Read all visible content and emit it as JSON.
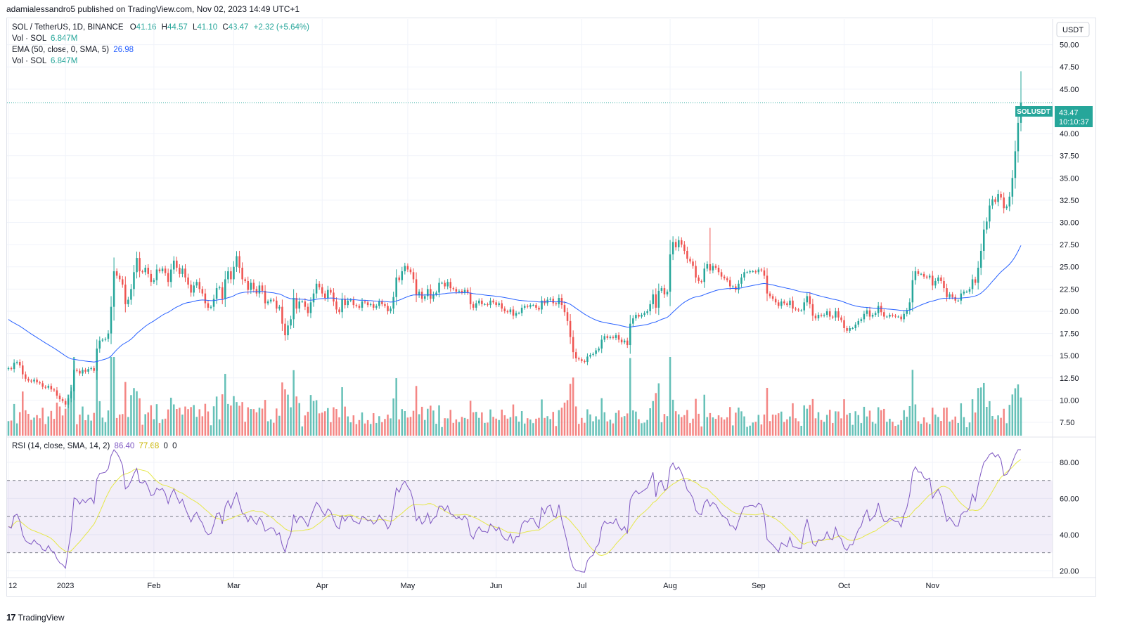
{
  "header": {
    "published": "adamialessandro5 published on TradingView.com, Nov 02, 2023 14:49 UTC+1"
  },
  "legend": {
    "symbol": "SOL / TetherUS, 1D, BINANCE",
    "open_label": "O",
    "open": "41.16",
    "high_label": "H",
    "high": "44.57",
    "low_label": "L",
    "low": "41.10",
    "close_label": "C",
    "close": "43.47",
    "change": "+2.32 (+5.64%)",
    "vol1_label": "Vol · SOL",
    "vol1": "6.847M",
    "ema_label": "EMA (50, close, 0, SMA, 5)",
    "ema": "26.98",
    "vol2_label": "Vol · SOL",
    "vol2": "6.847M",
    "rsi_label": "RSI (14, close, SMA, 14, 2)",
    "rsi": "86.40",
    "rsi_ma": "77.68",
    "rsi_x1": "0",
    "rsi_x2": "0"
  },
  "axis": {
    "currency": "USDT",
    "price_ticks": [
      "50.00",
      "47.50",
      "45.00",
      "40.00",
      "37.50",
      "35.00",
      "32.50",
      "30.00",
      "27.50",
      "25.00",
      "22.50",
      "20.00",
      "17.50",
      "15.00",
      "12.50",
      "10.00",
      "7.50"
    ],
    "rsi_ticks": [
      "80.00",
      "60.00",
      "40.00",
      "20.00"
    ],
    "time_ticks": [
      "12",
      "2023",
      "Feb",
      "Mar",
      "Apr",
      "May",
      "Jun",
      "Jul",
      "Aug",
      "Sep",
      "Oct",
      "Nov"
    ]
  },
  "price_label": {
    "symbol": "SOLUSDT",
    "price": "43.47",
    "countdown": "10:10:37"
  },
  "footer": {
    "brand": "TradingView",
    "logo": "17"
  },
  "colors": {
    "up": "#26a69a",
    "down": "#ef5350",
    "ema": "#2962ff",
    "rsi": "#7e57c2",
    "rsi_ma": "#e6e84a",
    "rsi_band": "#7e57c2"
  },
  "chart_data": {
    "type": "candlestick",
    "ylim": [
      6.0,
      52.5
    ],
    "rsi_ylim": [
      17,
      87
    ],
    "rsi_bands": [
      30,
      50,
      70
    ],
    "months": [
      {
        "label": "12",
        "index": 0
      },
      {
        "label": "2023",
        "index": 20
      },
      {
        "label": "Feb",
        "index": 51
      },
      {
        "label": "Mar",
        "index": 79
      },
      {
        "label": "Apr",
        "index": 110
      },
      {
        "label": "May",
        "index": 140
      },
      {
        "label": "Jun",
        "index": 171
      },
      {
        "label": "Jul",
        "index": 201
      },
      {
        "label": "Aug",
        "index": 232
      },
      {
        "label": "Sep",
        "index": 263
      },
      {
        "label": "Oct",
        "index": 293
      },
      {
        "label": "Nov",
        "index": 324
      }
    ],
    "closes": [
      13.6,
      13.5,
      14.2,
      14.3,
      13.9,
      12.9,
      12.4,
      12.2,
      12.1,
      12.3,
      12.0,
      11.9,
      11.5,
      11.4,
      11.6,
      11.2,
      11.1,
      10.5,
      10.1,
      9.9,
      9.5,
      10.2,
      11.0,
      13.4,
      13.3,
      13.0,
      13.4,
      13.2,
      13.5,
      13.6,
      13.3,
      15.8,
      16.7,
      16.8,
      16.9,
      17.5,
      20.5,
      24.5,
      24.0,
      23.6,
      23.0,
      20.8,
      21.3,
      22.5,
      24.4,
      26.0,
      24.5,
      24.4,
      24.9,
      24.2,
      23.3,
      23.5,
      24.7,
      24.5,
      24.8,
      24.3,
      23.3,
      24.7,
      25.7,
      24.9,
      24.2,
      24.8,
      23.8,
      23.0,
      22.1,
      22.9,
      23.3,
      22.5,
      22.0,
      20.9,
      20.4,
      20.5,
      21.4,
      22.6,
      22.7,
      21.4,
      23.6,
      24.5,
      23.6,
      25.0,
      26.2,
      24.9,
      23.6,
      23.4,
      22.4,
      23.2,
      22.5,
      22.0,
      22.9,
      22.3,
      20.9,
      21.1,
      21.3,
      21.2,
      20.3,
      20.5,
      18.6,
      17.3,
      18.4,
      19.1,
      21.5,
      20.3,
      21.1,
      21.1,
      20.5,
      19.8,
      21.0,
      22.0,
      23.1,
      22.7,
      22.0,
      21.5,
      22.4,
      22.1,
      21.1,
      20.2,
      19.9,
      21.4,
      20.7,
      21.2,
      21.3,
      20.7,
      20.6,
      20.4,
      21.1,
      21.0,
      20.7,
      20.8,
      20.4,
      20.6,
      21.1,
      20.8,
      20.6,
      20.0,
      20.3,
      21.6,
      23.8,
      23.5,
      24.5,
      25.1,
      24.7,
      24.4,
      23.6,
      21.8,
      22.2,
      21.4,
      21.7,
      22.5,
      21.4,
      21.9,
      22.1,
      23.2,
      23.2,
      22.8,
      23.3,
      22.6,
      22.5,
      22.2,
      22.3,
      22.1,
      22.4,
      22.1,
      20.8,
      20.4,
      20.9,
      21.2,
      20.8,
      20.8,
      20.7,
      21.2,
      21.0,
      20.7,
      20.9,
      20.3,
      20.0,
      19.9,
      20.2,
      19.5,
      19.8,
      19.8,
      20.4,
      20.6,
      20.5,
      20.7,
      20.7,
      20.4,
      20.2,
      21.2,
      20.9,
      21.3,
      21.4,
      20.9,
      20.8,
      21.5,
      20.7,
      19.9,
      18.9,
      17.1,
      15.4,
      14.7,
      14.6,
      14.4,
      14.3,
      14.9,
      15.1,
      15.2,
      15.6,
      15.8,
      16.8,
      17.2,
      17.0,
      17.1,
      17.0,
      17.3,
      16.8,
      16.5,
      16.7,
      16.2,
      18.6,
      19.2,
      19.6,
      19.4,
      19.6,
      19.8,
      20.0,
      20.8,
      21.9,
      20.4,
      22.3,
      22.6,
      21.9,
      22.2,
      26.4,
      27.8,
      27.2,
      28.0,
      27.5,
      26.8,
      25.9,
      25.6,
      25.1,
      23.8,
      23.4,
      23.3,
      24.8,
      25.3,
      24.6,
      25.1,
      24.9,
      24.4,
      23.9,
      23.7,
      23.5,
      22.8,
      22.8,
      22.4,
      23.1,
      23.8,
      24.4,
      24.4,
      24.5,
      24.5,
      24.4,
      24.7,
      24.6,
      24.0,
      22.0,
      21.7,
      21.4,
      21.0,
      20.6,
      21.1,
      20.9,
      20.7,
      21.2,
      20.3,
      20.2,
      20.1,
      20.1,
      21.0,
      21.7,
      20.8,
      19.5,
      19.2,
      19.6,
      19.5,
      19.6,
      20.0,
      19.4,
      19.3,
      20.0,
      19.3,
      19.0,
      18.1,
      17.8,
      18.1,
      18.1,
      18.5,
      18.9,
      19.1,
      19.7,
      20.1,
      19.4,
      19.6,
      19.8,
      20.6,
      19.9,
      19.4,
      19.4,
      19.6,
      19.5,
      19.4,
      19.4,
      19.1,
      19.7,
      20.1,
      21.0,
      23.5,
      24.5,
      24.2,
      24.2,
      23.9,
      23.8,
      24.0,
      22.9,
      23.4,
      23.8,
      23.4,
      22.6,
      21.6,
      21.9,
      21.6,
      21.2,
      21.2,
      22.0,
      22.2,
      22.2,
      22.5,
      23.6,
      23.2,
      24.9,
      26.8,
      29.2,
      30.1,
      31.9,
      32.6,
      32.3,
      33.2,
      32.8,
      31.6,
      31.8,
      32.9,
      35.0,
      38.0,
      41.2,
      43.47
    ]
  }
}
